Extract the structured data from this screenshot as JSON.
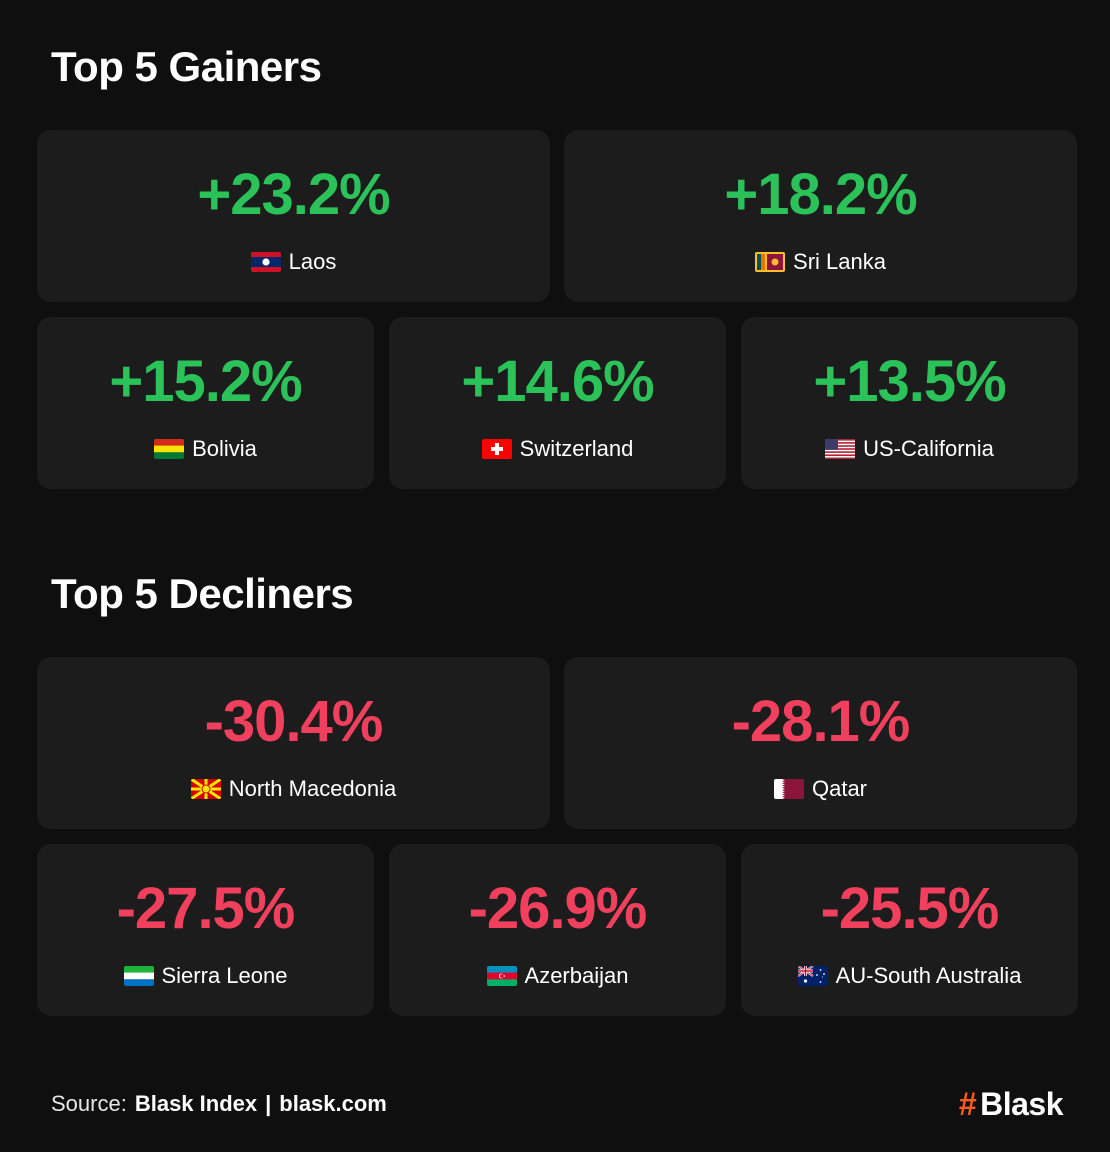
{
  "gainers": {
    "title": "Top 5 Gainers",
    "items": [
      {
        "value": "+23.2%",
        "country": "Laos",
        "flag": "laos-flag-icon"
      },
      {
        "value": "+18.2%",
        "country": "Sri Lanka",
        "flag": "sri-lanka-flag-icon"
      },
      {
        "value": "+15.2%",
        "country": "Bolivia",
        "flag": "bolivia-flag-icon"
      },
      {
        "value": "+14.6%",
        "country": "Switzerland",
        "flag": "switzerland-flag-icon"
      },
      {
        "value": "+13.5%",
        "country": "US-California",
        "flag": "us-flag-icon"
      }
    ]
  },
  "decliners": {
    "title": "Top 5 Decliners",
    "items": [
      {
        "value": "-30.4%",
        "country": "North Macedonia",
        "flag": "north-macedonia-flag-icon"
      },
      {
        "value": "-28.1%",
        "country": "Qatar",
        "flag": "qatar-flag-icon"
      },
      {
        "value": "-27.5%",
        "country": "Sierra Leone",
        "flag": "sierra-leone-flag-icon"
      },
      {
        "value": "-26.9%",
        "country": "Azerbaijan",
        "flag": "azerbaijan-flag-icon"
      },
      {
        "value": "-25.5%",
        "country": "AU-South Australia",
        "flag": "australia-flag-icon"
      }
    ]
  },
  "footer": {
    "source_label": "Source:",
    "source_name": "Blask Index",
    "separator": "|",
    "url": "blask.com"
  },
  "logo": {
    "hash": "#",
    "name": "Blask"
  },
  "colors": {
    "background": "#0f0f0f",
    "card": "#1c1c1c",
    "positive": "#2bc25a",
    "negative": "#f0405e",
    "brand": "#ff5a1f"
  }
}
